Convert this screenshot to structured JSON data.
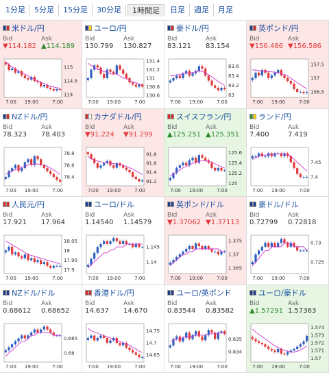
{
  "tabs": [
    {
      "label": "1分足",
      "active": false
    },
    {
      "label": "5分足",
      "active": false
    },
    {
      "label": "15分足",
      "active": false
    },
    {
      "label": "30分足",
      "active": false
    },
    {
      "label": "1時間足",
      "active": true
    },
    {
      "label": "日足",
      "active": false
    },
    {
      "label": "週足",
      "active": false
    },
    {
      "label": "月足",
      "active": false
    }
  ],
  "labels": {
    "bid": "Bid",
    "ask": "Ask"
  },
  "x_ticks": [
    "7:00",
    "19:00",
    "7:00"
  ],
  "colors": {
    "down_bg": "#fde6e6",
    "up_bg": "#e6f6e3",
    "up_candle": "#2f5fbf",
    "down_candle": "#e03a3a",
    "ma_line": "#cc33cc",
    "ma_line2": "#33aacc"
  },
  "pairs": [
    {
      "name": "米ドル/円",
      "flags": [
        "#1a3a8a",
        "#d42a2a"
      ],
      "trend": "down",
      "bid": "▼114.182",
      "ask": "▲114.189",
      "bid_dir": "dn",
      "ask_dir": "upv",
      "ticks": [
        "115",
        "114.5",
        "114"
      ],
      "ylim": [
        113.9,
        115.3
      ],
      "closes": [
        115.1,
        114.9,
        114.95,
        114.8,
        114.85,
        114.7,
        114.6,
        114.55,
        114.65,
        114.5,
        114.45,
        114.3,
        114.35,
        114.25,
        114.2,
        114.15,
        114.2,
        114.18
      ],
      "ma": [
        115.2,
        115.1,
        115.0,
        114.95,
        114.85,
        114.8,
        114.75,
        114.7,
        114.6,
        114.55,
        114.5,
        114.45,
        114.4,
        114.35,
        114.3,
        114.28,
        114.25,
        114.23
      ]
    },
    {
      "name": "ユーロ/円",
      "flags": [
        "#1a3a8a",
        "#ffd400"
      ],
      "trend": "none",
      "bid": "130.799",
      "ask": "130.827",
      "bid_dir": "",
      "ask_dir": "",
      "ticks": [
        "131.4",
        "131.2",
        "131",
        "130.8",
        "130.6"
      ],
      "ylim": [
        130.55,
        131.45
      ],
      "closes": [
        131.0,
        131.2,
        131.3,
        131.25,
        131.1,
        131.0,
        131.2,
        131.15,
        131.1,
        131.3,
        131.2,
        131.1,
        131.0,
        130.9,
        130.85,
        130.8,
        130.85,
        130.8
      ],
      "ma": [
        131.35,
        131.3,
        131.25,
        131.2,
        131.2,
        131.15,
        131.15,
        131.1,
        131.1,
        131.1,
        131.05,
        131.0,
        131.0,
        130.95,
        130.9,
        130.9,
        130.85,
        130.85
      ]
    },
    {
      "name": "豪ドル/円",
      "flags": [
        "#1a3a8a",
        "#d42a2a"
      ],
      "trend": "none",
      "bid": "83.121",
      "ask": "83.154",
      "bid_dir": "",
      "ask_dir": "",
      "ticks": [
        "83.6",
        "83.4",
        "83.2",
        "83"
      ],
      "ylim": [
        82.95,
        83.75
      ],
      "closes": [
        83.3,
        83.35,
        83.4,
        83.35,
        83.45,
        83.5,
        83.4,
        83.45,
        83.5,
        83.6,
        83.55,
        83.4,
        83.3,
        83.2,
        83.15,
        83.1,
        83.15,
        83.12
      ],
      "ma": [
        83.4,
        83.4,
        83.42,
        83.43,
        83.44,
        83.45,
        83.46,
        83.47,
        83.48,
        83.5,
        83.49,
        83.46,
        83.42,
        83.38,
        83.33,
        83.28,
        83.24,
        83.2
      ]
    },
    {
      "name": "英ポンド/円",
      "flags": [
        "#1a3a8a",
        "#d42a2a"
      ],
      "trend": "down",
      "bid": "▼156.486",
      "ask": "▼156.586",
      "bid_dir": "dn",
      "ask_dir": "dn",
      "ticks": [
        "157.5",
        "157",
        "156.5"
      ],
      "ylim": [
        156.3,
        157.7
      ],
      "closes": [
        157.0,
        157.2,
        157.1,
        157.3,
        157.2,
        157.0,
        157.1,
        157.2,
        157.3,
        157.1,
        157.0,
        156.9,
        156.8,
        156.6,
        156.5,
        156.5,
        156.45,
        156.49
      ],
      "ma": [
        157.3,
        157.3,
        157.28,
        157.26,
        157.25,
        157.24,
        157.23,
        157.22,
        157.2,
        157.17,
        157.13,
        157.08,
        157.0,
        156.92,
        156.84,
        156.76,
        156.68,
        156.62
      ]
    },
    {
      "name": "NZドル/円",
      "flags": [
        "#1a3a8a",
        "#d42a2a"
      ],
      "trend": "none",
      "bid": "78.323",
      "ask": "78.403",
      "bid_dir": "",
      "ask_dir": "",
      "ticks": [
        "78.8",
        "78.6",
        "78.4"
      ],
      "ylim": [
        78.25,
        78.9
      ],
      "closes": [
        78.4,
        78.5,
        78.55,
        78.6,
        78.5,
        78.55,
        78.65,
        78.7,
        78.6,
        78.75,
        78.7,
        78.6,
        78.55,
        78.5,
        78.45,
        78.4,
        78.35,
        78.32
      ],
      "ma": [
        78.45,
        78.47,
        78.5,
        78.52,
        78.54,
        78.56,
        78.58,
        78.6,
        78.61,
        78.62,
        78.62,
        78.61,
        78.6,
        78.58,
        78.55,
        78.52,
        78.48,
        78.44
      ]
    },
    {
      "name": "カナダドル/円",
      "flags": [
        "#d42a2a",
        "#ffffff"
      ],
      "trend": "down",
      "bid": "▼91.224",
      "ask": "▼91.299",
      "bid_dir": "dn",
      "ask_dir": "dn",
      "ticks": [
        "91.8",
        "91.6",
        "91.4",
        "91.2"
      ],
      "ylim": [
        91.1,
        91.95
      ],
      "closes": [
        91.8,
        91.7,
        91.6,
        91.5,
        91.55,
        91.6,
        91.65,
        91.55,
        91.5,
        91.6,
        91.55,
        91.5,
        91.45,
        91.4,
        91.3,
        91.25,
        91.2,
        91.22
      ],
      "ma": [
        91.75,
        91.7,
        91.67,
        91.65,
        91.63,
        91.62,
        91.61,
        91.6,
        91.59,
        91.58,
        91.57,
        91.55,
        91.53,
        91.5,
        91.47,
        91.43,
        91.39,
        91.35
      ]
    },
    {
      "name": "スイスフラン/円",
      "flags": [
        "#d42a2a",
        "#d42a2a"
      ],
      "trend": "up",
      "bid": "▲125.251",
      "ask": "▲125.351",
      "bid_dir": "upv",
      "ask_dir": "upv",
      "ticks": [
        "125.6",
        "125.4",
        "125.2",
        "125"
      ],
      "ylim": [
        124.95,
        125.7
      ],
      "closes": [
        125.1,
        125.2,
        125.3,
        125.35,
        125.4,
        125.35,
        125.45,
        125.5,
        125.4,
        125.55,
        125.5,
        125.45,
        125.4,
        125.3,
        125.25,
        125.3,
        125.25,
        125.25
      ],
      "ma": [
        125.15,
        125.18,
        125.22,
        125.26,
        125.3,
        125.33,
        125.36,
        125.39,
        125.41,
        125.43,
        125.44,
        125.44,
        125.43,
        125.41,
        125.38,
        125.35,
        125.32,
        125.3
      ]
    },
    {
      "name": "ランド/円",
      "flags": [
        "#2c8a2c",
        "#ffd400"
      ],
      "trend": "none",
      "bid": "7.400",
      "ask": "7.419",
      "bid_dir": "",
      "ask_dir": "",
      "ticks": [
        "7.45",
        "7.4"
      ],
      "ylim": [
        7.37,
        7.5
      ],
      "closes": [
        7.47,
        7.47,
        7.48,
        7.47,
        7.47,
        7.48,
        7.47,
        7.48,
        7.48,
        7.47,
        7.48,
        7.47,
        7.45,
        7.43,
        7.41,
        7.4,
        7.4,
        7.4
      ],
      "ma": [
        7.46,
        7.465,
        7.47,
        7.472,
        7.474,
        7.476,
        7.477,
        7.478,
        7.479,
        7.479,
        7.478,
        7.476,
        7.47,
        7.46,
        7.45,
        7.44,
        7.43,
        7.42
      ]
    },
    {
      "name": "人民元/円",
      "flags": [
        "#d42a2a",
        "#d42a2a"
      ],
      "trend": "none",
      "bid": "17.921",
      "ask": "17.964",
      "bid_dir": "",
      "ask_dir": "",
      "ticks": [
        "18.05",
        "18",
        "17.95",
        "17.9"
      ],
      "ylim": [
        17.88,
        18.08
      ],
      "closes": [
        18.0,
        18.02,
        17.98,
        17.99,
        17.97,
        17.96,
        17.98,
        17.95,
        17.96,
        17.94,
        17.95,
        17.93,
        17.94,
        17.92,
        17.91,
        17.92,
        17.92,
        17.92
      ],
      "ma": [
        18.05,
        18.04,
        18.03,
        18.02,
        18.01,
        18.0,
        17.99,
        17.98,
        17.975,
        17.97,
        17.965,
        17.96,
        17.955,
        17.95,
        17.945,
        17.94,
        17.935,
        17.93
      ]
    },
    {
      "name": "ユーロ/ドル",
      "flags": [
        "#1a3a8a",
        "#1a3a8a"
      ],
      "trend": "none",
      "bid": "1.14540",
      "ask": "1.14579",
      "bid_dir": "",
      "ask_dir": "",
      "ticks": [
        "1.145",
        "1.14"
      ],
      "ylim": [
        1.136,
        1.149
      ],
      "closes": [
        1.139,
        1.141,
        1.143,
        1.145,
        1.146,
        1.147,
        1.146,
        1.147,
        1.148,
        1.147,
        1.146,
        1.147,
        1.146,
        1.146,
        1.145,
        1.146,
        1.145,
        1.145
      ],
      "ma": [
        1.138,
        1.139,
        1.14,
        1.141,
        1.142,
        1.143,
        1.143,
        1.144,
        1.144,
        1.145,
        1.145,
        1.145,
        1.146,
        1.146,
        1.146,
        1.146,
        1.146,
        1.146
      ]
    },
    {
      "name": "英ポンド/ドル",
      "flags": [
        "#1a3a8a",
        "#1a3a8a"
      ],
      "trend": "down",
      "bid": "▼1.37062",
      "ask": "▼1.37113",
      "bid_dir": "dn",
      "ask_dir": "dn",
      "ticks": [
        "1.375",
        "1.37",
        "1.365"
      ],
      "ylim": [
        1.363,
        1.377
      ],
      "closes": [
        1.367,
        1.368,
        1.369,
        1.37,
        1.371,
        1.372,
        1.373,
        1.372,
        1.374,
        1.373,
        1.372,
        1.373,
        1.372,
        1.371,
        1.371,
        1.37,
        1.371,
        1.371
      ],
      "ma": [
        1.366,
        1.367,
        1.368,
        1.369,
        1.37,
        1.37,
        1.371,
        1.371,
        1.372,
        1.372,
        1.372,
        1.372,
        1.372,
        1.372,
        1.372,
        1.372,
        1.371,
        1.371
      ]
    },
    {
      "name": "豪ドル/ドル",
      "flags": [
        "#1a3a8a",
        "#1a3a8a"
      ],
      "trend": "none",
      "bid": "0.72799",
      "ask": "0.72818",
      "bid_dir": "",
      "ask_dir": "",
      "ticks": [
        "0.73",
        "0.725"
      ],
      "ylim": [
        0.722,
        0.732
      ],
      "closes": [
        0.725,
        0.727,
        0.728,
        0.729,
        0.73,
        0.729,
        0.73,
        0.729,
        0.73,
        0.731,
        0.73,
        0.729,
        0.73,
        0.729,
        0.728,
        0.728,
        0.728,
        0.728
      ],
      "ma": [
        0.724,
        0.725,
        0.726,
        0.727,
        0.728,
        0.728,
        0.729,
        0.729,
        0.729,
        0.729,
        0.73,
        0.73,
        0.73,
        0.729,
        0.729,
        0.729,
        0.729,
        0.728
      ]
    },
    {
      "name": "NZドル/ドル",
      "flags": [
        "#1a3a8a",
        "#1a3a8a"
      ],
      "trend": "none",
      "bid": "0.68612",
      "ask": "0.68652",
      "bid_dir": "",
      "ask_dir": "",
      "ticks": [
        "0.685",
        "0.68"
      ],
      "ylim": [
        0.677,
        0.69
      ],
      "closes": [
        0.681,
        0.682,
        0.683,
        0.684,
        0.685,
        0.686,
        0.685,
        0.686,
        0.687,
        0.688,
        0.687,
        0.688,
        0.689,
        0.688,
        0.687,
        0.686,
        0.686,
        0.686
      ],
      "ma": [
        0.679,
        0.68,
        0.681,
        0.682,
        0.683,
        0.684,
        0.684,
        0.685,
        0.686,
        0.686,
        0.687,
        0.687,
        0.687,
        0.687,
        0.687,
        0.686,
        0.686,
        0.686
      ]
    },
    {
      "name": "香港ドル/円",
      "flags": [
        "#d42a2a",
        "#d42a2a"
      ],
      "trend": "none",
      "bid": "14.637",
      "ask": "14.670",
      "bid_dir": "",
      "ask_dir": "",
      "ticks": [
        "14.75",
        "14.7",
        "14.65"
      ],
      "ylim": [
        14.62,
        14.78
      ],
      "closes": [
        14.72,
        14.73,
        14.71,
        14.72,
        14.73,
        14.72,
        14.7,
        14.71,
        14.72,
        14.7,
        14.69,
        14.7,
        14.68,
        14.67,
        14.66,
        14.65,
        14.64,
        14.64
      ],
      "ma": [
        14.76,
        14.75,
        14.745,
        14.74,
        14.735,
        14.73,
        14.725,
        14.72,
        14.715,
        14.71,
        14.705,
        14.7,
        14.695,
        14.69,
        14.68,
        14.675,
        14.665,
        14.66
      ]
    },
    {
      "name": "ユーロ/英ポンド",
      "flags": [
        "#1a3a8a",
        "#1a3a8a"
      ],
      "trend": "none",
      "bid": "0.83544",
      "ask": "0.83582",
      "bid_dir": "",
      "ask_dir": "",
      "ticks": [
        "0.835",
        "0.834"
      ],
      "ylim": [
        0.8332,
        0.8362
      ],
      "closes": [
        0.8345,
        0.835,
        0.8352,
        0.8348,
        0.8351,
        0.8355,
        0.835,
        0.8353,
        0.8356,
        0.8352,
        0.8349,
        0.8353,
        0.8357,
        0.8355,
        0.835,
        0.8355,
        0.8356,
        0.8354
      ],
      "ma": [
        0.8348,
        0.8349,
        0.835,
        0.835,
        0.8351,
        0.8352,
        0.8352,
        0.8352,
        0.8353,
        0.8353,
        0.8353,
        0.8353,
        0.8354,
        0.8354,
        0.8354,
        0.8354,
        0.8355,
        0.8355
      ]
    },
    {
      "name": "ユーロ/豪ドル",
      "flags": [
        "#1a3a8a",
        "#1a3a8a"
      ],
      "trend": "up",
      "bid": "▲1.57291",
      "ask": "1.57363",
      "bid_dir": "upv",
      "ask_dir": "",
      "ticks": [
        "1.574",
        "1.573",
        "1.572",
        "1.571",
        "1.57"
      ],
      "ylim": [
        1.5695,
        1.5745
      ],
      "closes": [
        1.5725,
        1.5722,
        1.572,
        1.5718,
        1.5715,
        1.5712,
        1.571,
        1.5708,
        1.5712,
        1.5706,
        1.5705,
        1.5708,
        1.571,
        1.5712,
        1.5715,
        1.5718,
        1.5722,
        1.5729
      ],
      "ma": [
        1.5738,
        1.5734,
        1.5731,
        1.5728,
        1.5725,
        1.5722,
        1.5719,
        1.5716,
        1.5714,
        1.5712,
        1.571,
        1.5709,
        1.5708,
        1.5708,
        1.5709,
        1.5711,
        1.5713,
        1.5716
      ]
    }
  ]
}
